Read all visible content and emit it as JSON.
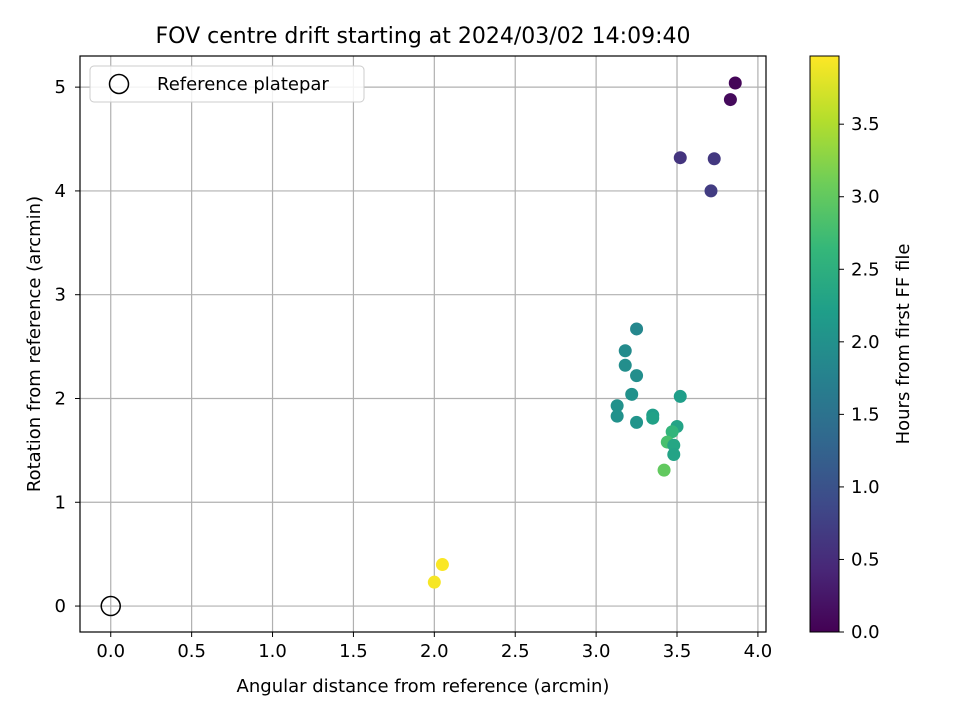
{
  "chart_data": {
    "type": "scatter",
    "title": "FOV centre drift starting at 2024/03/02 14:09:40",
    "xlabel": "Angular distance from reference (arcmin)",
    "ylabel": "Rotation from reference (arcmin)",
    "xlim": [
      -0.19,
      4.05
    ],
    "ylim": [
      -0.25,
      5.3
    ],
    "grid": true,
    "x_ticks": [
      0.0,
      0.5,
      1.0,
      1.5,
      2.0,
      2.5,
      3.0,
      3.5,
      4.0
    ],
    "x_tick_labels": [
      "0.0",
      "0.5",
      "1.0",
      "1.5",
      "2.0",
      "2.5",
      "3.0",
      "3.5",
      "4.0"
    ],
    "y_ticks": [
      0,
      1,
      2,
      3,
      4,
      5
    ],
    "y_tick_labels": [
      "0",
      "1",
      "2",
      "3",
      "4",
      "5"
    ],
    "legend": {
      "position": "top-left",
      "entries": [
        "Reference platepar"
      ]
    },
    "reference_point": {
      "x": 0.0,
      "y": 0.0
    },
    "colorbar": {
      "label": "Hours from first FF file",
      "colormap": "viridis",
      "range": [
        0.0,
        3.97
      ],
      "ticks": [
        0.0,
        0.5,
        1.0,
        1.5,
        2.0,
        2.5,
        3.0,
        3.5
      ],
      "tick_labels": [
        "0.0",
        "0.5",
        "1.0",
        "1.5",
        "2.0",
        "2.5",
        "3.0",
        "3.5"
      ]
    },
    "points": [
      {
        "x": 3.86,
        "y": 5.04,
        "hours": 0.05
      },
      {
        "x": 3.83,
        "y": 4.88,
        "hours": 0.1
      },
      {
        "x": 3.52,
        "y": 4.32,
        "hours": 0.6
      },
      {
        "x": 3.73,
        "y": 4.31,
        "hours": 0.65
      },
      {
        "x": 3.71,
        "y": 4.0,
        "hours": 0.7
      },
      {
        "x": 3.25,
        "y": 2.67,
        "hours": 1.85
      },
      {
        "x": 3.18,
        "y": 2.46,
        "hours": 1.9
      },
      {
        "x": 3.18,
        "y": 2.32,
        "hours": 1.95
      },
      {
        "x": 3.25,
        "y": 2.22,
        "hours": 1.95
      },
      {
        "x": 3.22,
        "y": 2.04,
        "hours": 2.0
      },
      {
        "x": 3.52,
        "y": 2.02,
        "hours": 2.2
      },
      {
        "x": 3.13,
        "y": 1.93,
        "hours": 2.0
      },
      {
        "x": 3.13,
        "y": 1.83,
        "hours": 2.0
      },
      {
        "x": 3.35,
        "y": 1.84,
        "hours": 2.2
      },
      {
        "x": 3.35,
        "y": 1.81,
        "hours": 2.25
      },
      {
        "x": 3.25,
        "y": 1.77,
        "hours": 2.05
      },
      {
        "x": 3.5,
        "y": 1.73,
        "hours": 2.3
      },
      {
        "x": 3.47,
        "y": 1.68,
        "hours": 2.6
      },
      {
        "x": 3.44,
        "y": 1.58,
        "hours": 2.8
      },
      {
        "x": 3.48,
        "y": 1.55,
        "hours": 2.35
      },
      {
        "x": 3.48,
        "y": 1.46,
        "hours": 2.3
      },
      {
        "x": 3.42,
        "y": 1.31,
        "hours": 3.0
      },
      {
        "x": 2.05,
        "y": 0.4,
        "hours": 3.95
      },
      {
        "x": 2.0,
        "y": 0.23,
        "hours": 3.93
      }
    ]
  }
}
